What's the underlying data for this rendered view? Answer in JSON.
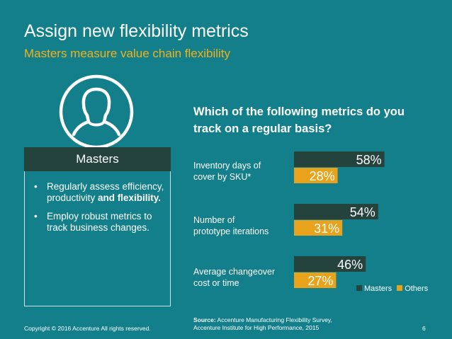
{
  "slide": {
    "title": "Assign new flexibility metrics",
    "subtitle": "Masters measure value chain flexibility"
  },
  "panel": {
    "header": "Masters",
    "bullet1_a": "Regularly assess efficiency, productivity ",
    "bullet1_b": "and flexibility.",
    "bullet2": "Employ robust metrics to track business changes."
  },
  "chart_data": {
    "type": "bar",
    "orientation": "horizontal",
    "title": "Which of the following metrics do you track on a regular basis?",
    "categories": [
      "Inventory days of cover by SKU*",
      "Number of prototype iterations",
      "Average changeover cost or time"
    ],
    "category_lines": [
      [
        "Inventory days of",
        "cover by SKU*"
      ],
      [
        "Number of",
        "prototype iterations"
      ],
      [
        "Average changeover",
        "cost or time"
      ]
    ],
    "series": [
      {
        "name": "Masters",
        "values": [
          58,
          54,
          46
        ],
        "labels": [
          "58%",
          "54%",
          "46%"
        ],
        "color": "#24433c"
      },
      {
        "name": "Others",
        "values": [
          28,
          31,
          27
        ],
        "labels": [
          "28%",
          "31%",
          "27%"
        ],
        "color": "#e8a21b"
      }
    ],
    "legend": "bottom-right"
  },
  "footer": {
    "copyright": "Copyright © 2016 Accenture  All rights reserved.",
    "source_label": "Source:",
    "source_line1": " Accenture Manufacturing Flexibility Survey,",
    "source_line2": "Accenture Institute for High Performance, 2015",
    "page_number": "6"
  },
  "colors": {
    "background": "#127f8b",
    "accent": "#f2b21b",
    "masters": "#24433c",
    "others": "#e8a21b"
  },
  "icons": {
    "avatar": "person-outline-icon"
  }
}
